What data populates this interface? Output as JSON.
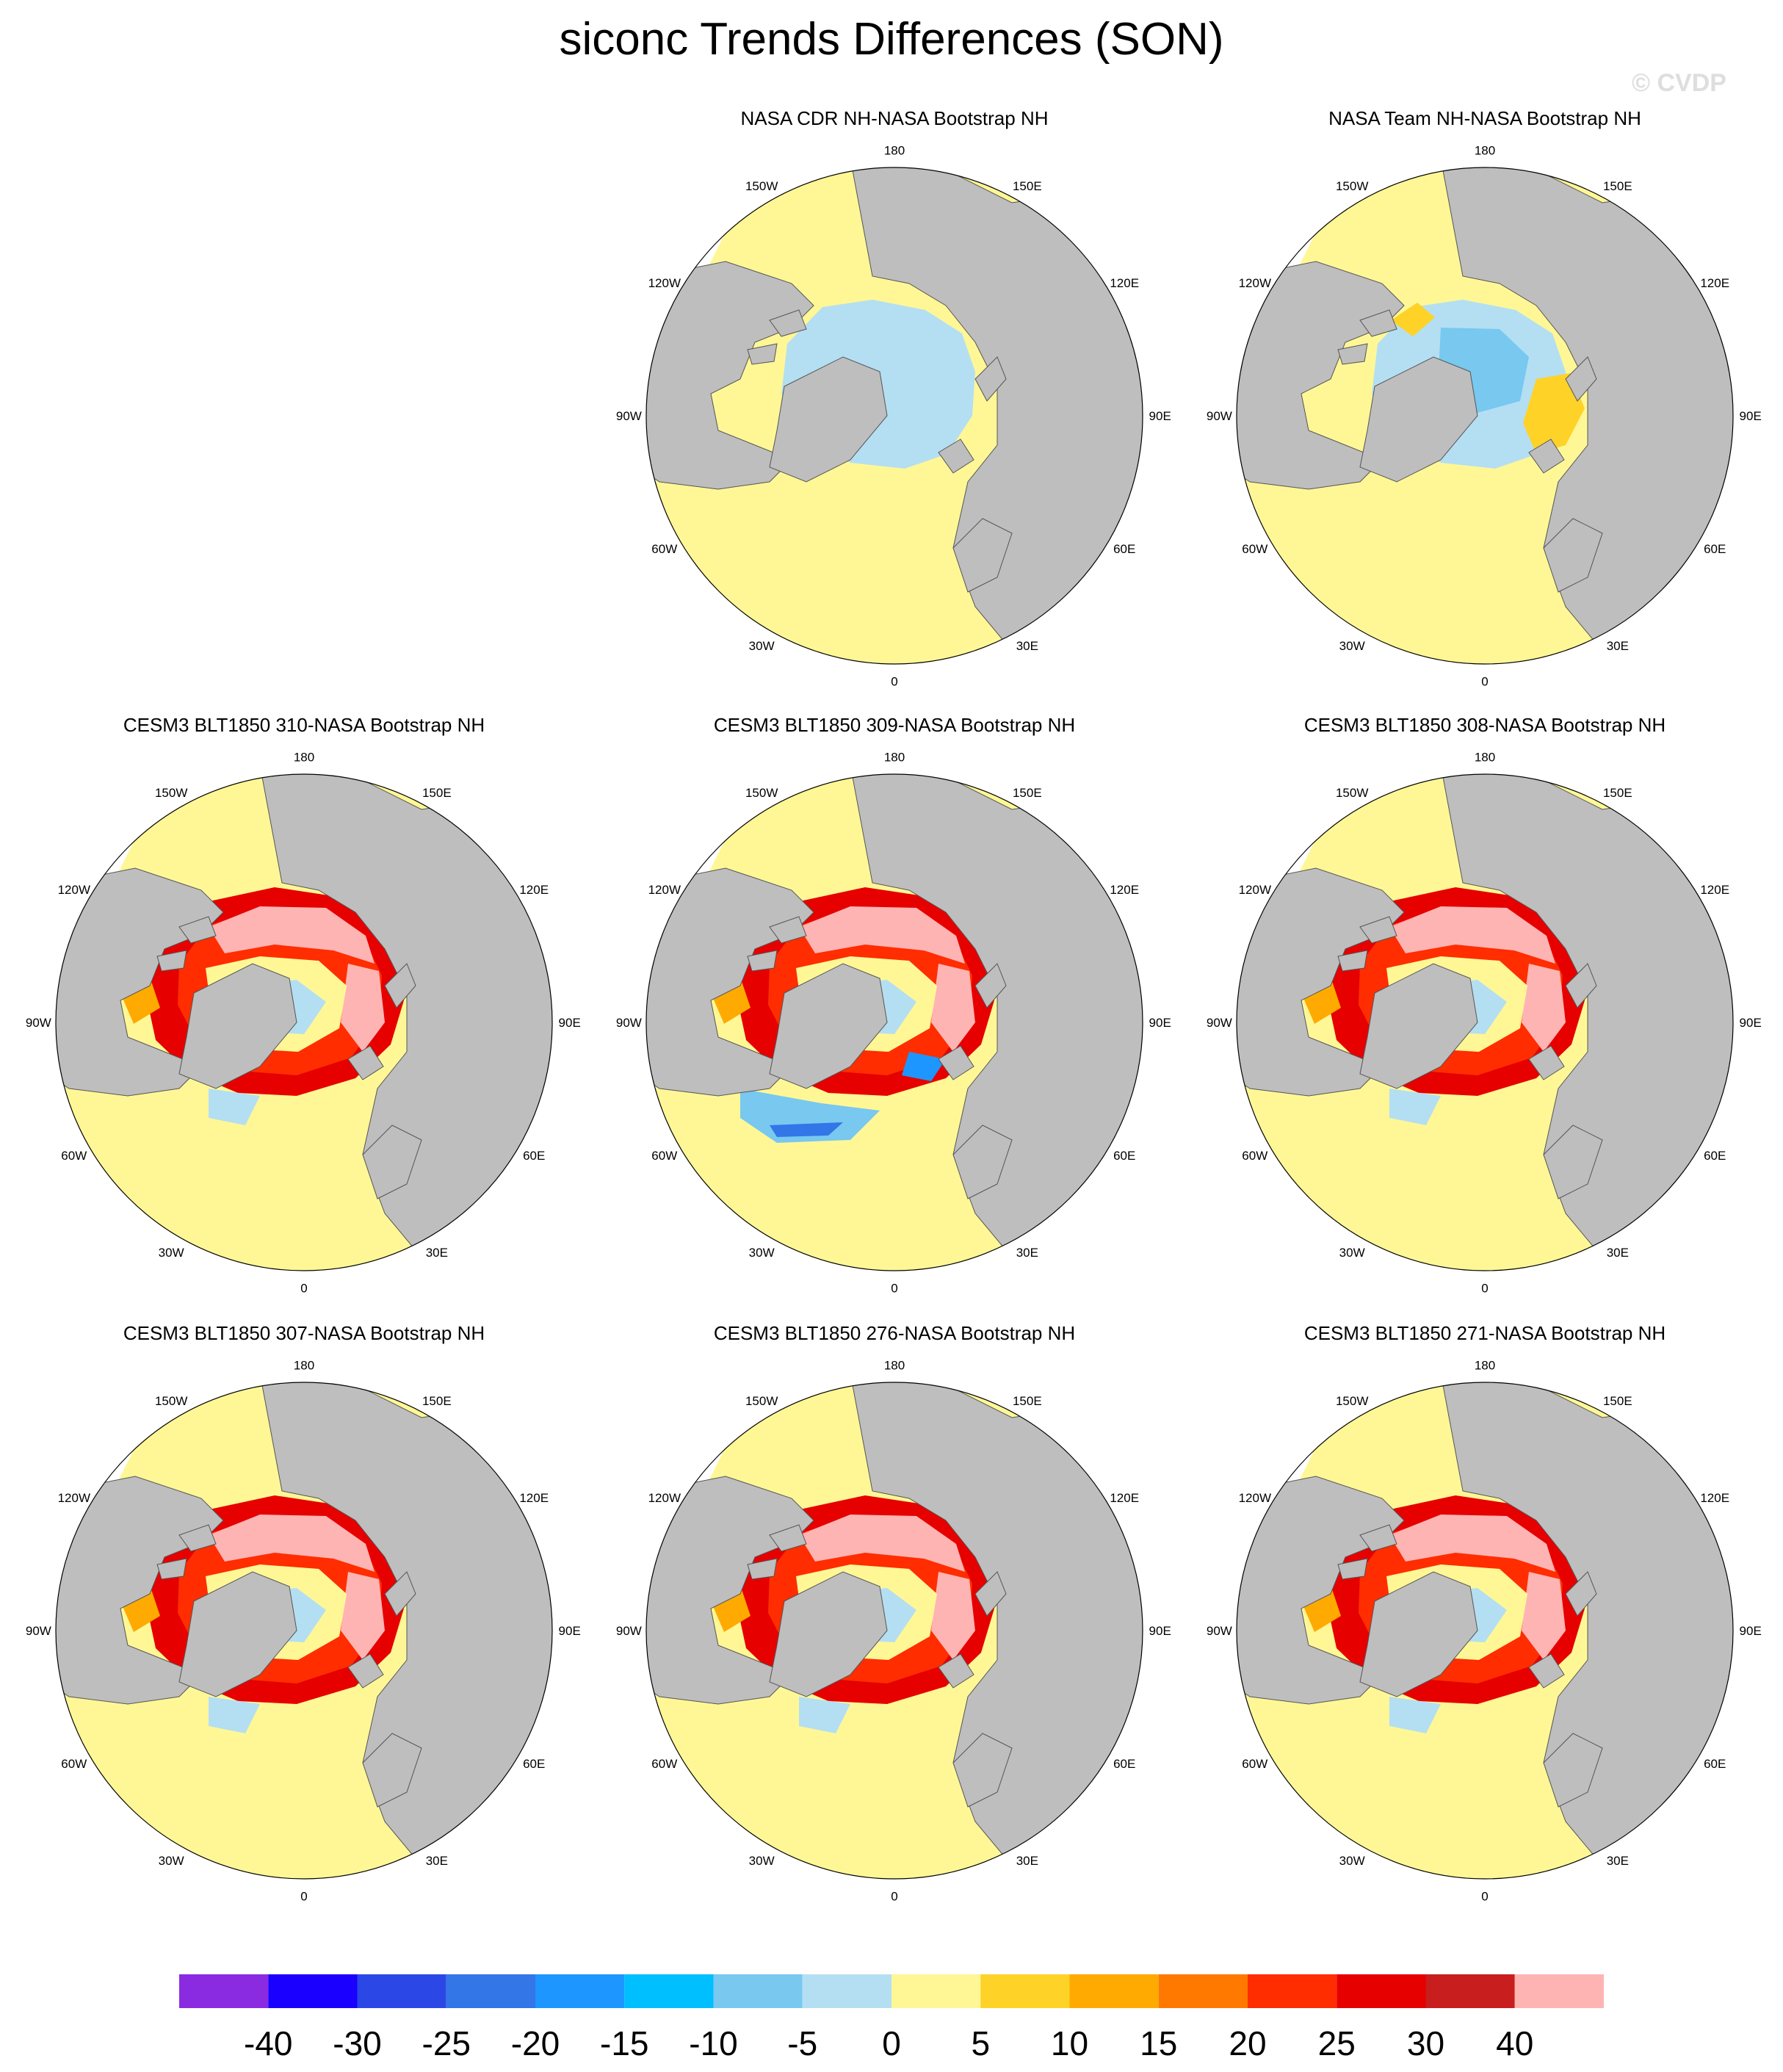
{
  "title": "siconc Trends Differences (SON)",
  "watermark": "© CVDP",
  "longitude_labels": [
    "180",
    "150E",
    "120E",
    "90E",
    "60E",
    "30E",
    "0",
    "30W",
    "60W",
    "90W",
    "120W",
    "150W"
  ],
  "panels": [
    {
      "title": "NASA CDR NH-NASA Bootstrap NH",
      "pattern": "cdr"
    },
    {
      "title": "NASA Team NH-NASA Bootstrap NH",
      "pattern": "team"
    },
    {
      "title": "CESM3 BLT1850 310-NASA Bootstrap NH",
      "pattern": "model"
    },
    {
      "title": "CESM3 BLT1850 309-NASA Bootstrap NH",
      "pattern": "model-blue"
    },
    {
      "title": "CESM3 BLT1850 308-NASA Bootstrap NH",
      "pattern": "model"
    },
    {
      "title": "CESM3 BLT1850 307-NASA Bootstrap NH",
      "pattern": "model"
    },
    {
      "title": "CESM3 BLT1850 276-NASA Bootstrap NH",
      "pattern": "model"
    },
    {
      "title": "CESM3 BLT1850 271-NASA Bootstrap NH",
      "pattern": "model"
    }
  ],
  "colorbar": {
    "labels": [
      "-40",
      "-30",
      "-25",
      "-20",
      "-15",
      "-10",
      "-5",
      "0",
      "5",
      "10",
      "15",
      "20",
      "25",
      "30",
      "40"
    ],
    "colors": [
      "#8a2be2",
      "#1a00ff",
      "#2b48e6",
      "#3276e8",
      "#1e96ff",
      "#00bfff",
      "#78c8f0",
      "#b4dff2",
      "#fff796",
      "#ffd228",
      "#ffaa00",
      "#ff7800",
      "#ff2d00",
      "#e60000",
      "#c81e1e",
      "#ffb4b4"
    ]
  },
  "land_color": "#bebebe"
}
